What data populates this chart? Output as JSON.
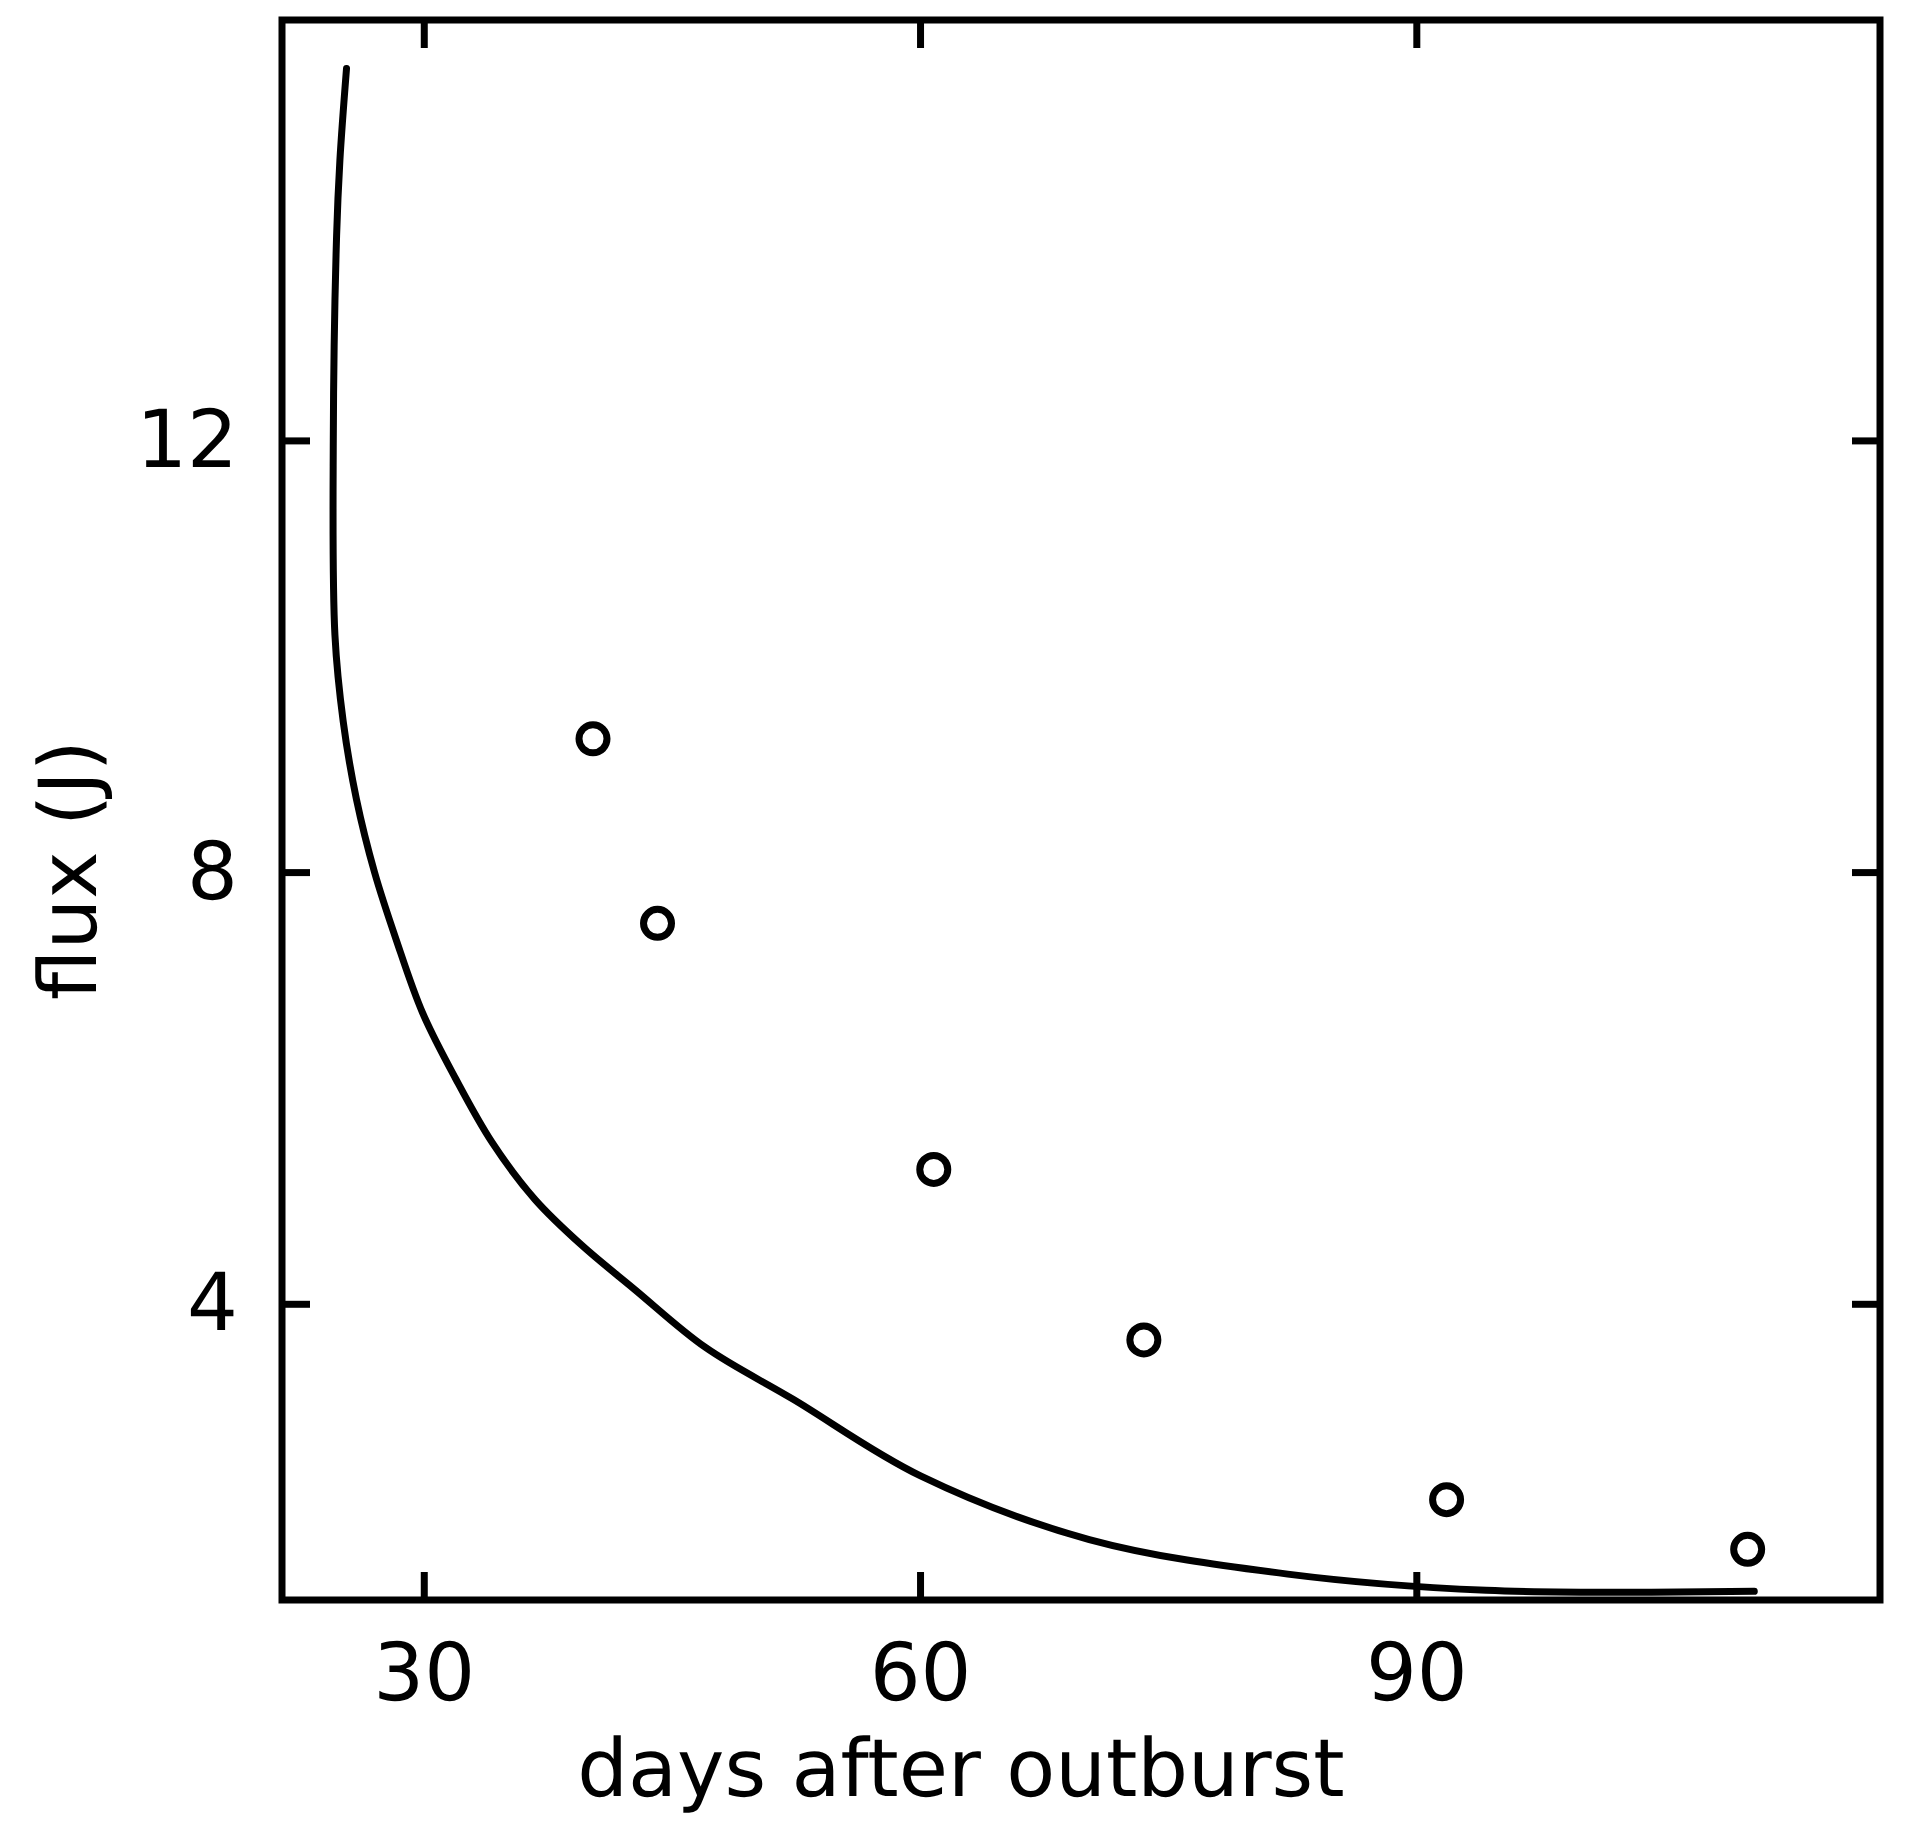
{
  "chart_data": {
    "type": "scatter",
    "xlabel": "days after outburst",
    "ylabel": "flux (J)",
    "xlim": [
      21.4,
      118
    ],
    "ylim": [
      1.26,
      15.9
    ],
    "xticks": [
      30,
      60,
      90
    ],
    "yticks": [
      4,
      8,
      12
    ],
    "marker": "circle",
    "grid": false,
    "series": [
      {
        "color": "#000000",
        "x": [
          40.2,
          44.1,
          60.8,
          73.5,
          91.8,
          110.0
        ],
        "values": [
          9.24,
          7.53,
          5.25,
          3.67,
          2.19,
          1.73
        ]
      },
      {
        "type": "line",
        "color": "#000000",
        "marker": "none",
        "x": [
          25.3,
          24.9,
          24.7,
          24.5,
          24.6,
          25.1,
          25.9,
          27.0,
          28.3,
          29.9,
          31.9,
          34.1,
          36.7,
          39.5,
          42.7,
          47.0,
          52.3,
          60.0,
          70.2,
          82.2,
          94.2,
          110.4
        ],
        "values": [
          15.45,
          14.6,
          13.9,
          12.0,
          10.2,
          9.4,
          8.68,
          8.0,
          7.38,
          6.7,
          6.09,
          5.5,
          4.97,
          4.55,
          4.14,
          3.6,
          3.12,
          2.41,
          1.82,
          1.5,
          1.35,
          1.34
        ]
      }
    ]
  }
}
